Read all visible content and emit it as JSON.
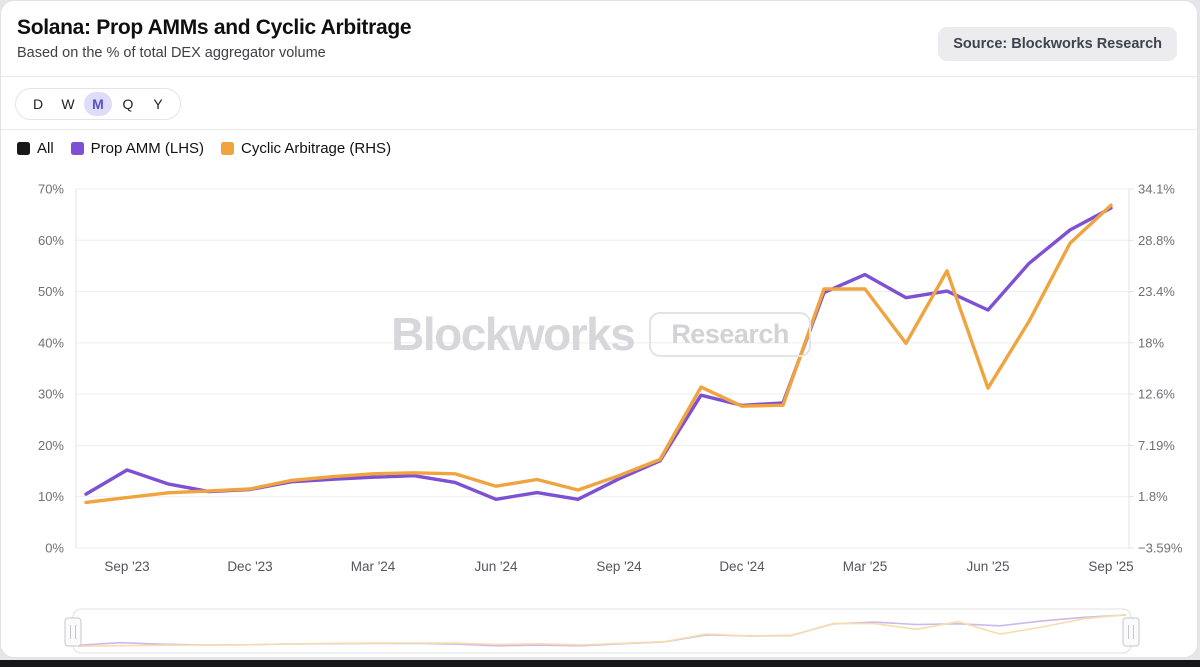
{
  "header": {
    "title": "Solana: Prop AMMs and Cyclic Arbitrage",
    "subtitle": "Based on the % of total DEX aggregator volume",
    "source_badge": "Source: Blockworks Research"
  },
  "period_selector": {
    "options": [
      "D",
      "W",
      "M",
      "Q",
      "Y"
    ],
    "selected": "M"
  },
  "legend": [
    {
      "label": "All",
      "color": "#18181b"
    },
    {
      "label": "Prop AMM (LHS)",
      "color": "#7d50d4"
    },
    {
      "label": "Cyclic Arbitrage (RHS)",
      "color": "#efa440"
    }
  ],
  "watermark": {
    "brand": "Blockworks",
    "suffix": "Research"
  },
  "chart_data": {
    "type": "line",
    "title": "Solana: Prop AMMs and Cyclic Arbitrage",
    "subtitle": "Based on the % of total DEX aggregator volume",
    "x": [
      "Aug '23",
      "Sep '23",
      "Oct '23",
      "Nov '23",
      "Dec '23",
      "Jan '24",
      "Feb '24",
      "Mar '24",
      "Apr '24",
      "May '24",
      "Jun '24",
      "Jul '24",
      "Aug '24",
      "Sep '24",
      "Oct '24",
      "Nov '24",
      "Dec '24",
      "Jan '25",
      "Feb '25",
      "Mar '25",
      "Apr '25",
      "May '25",
      "Jun '25",
      "Jul '25",
      "Aug '25",
      "Sep '25"
    ],
    "x_tick_labels": [
      "Sep '23",
      "Dec '23",
      "Mar '24",
      "Jun '24",
      "Sep '24",
      "Dec '24",
      "Mar '25",
      "Jun '25",
      "Sep '25"
    ],
    "x_tick_indices": [
      1,
      4,
      7,
      10,
      13,
      16,
      19,
      22,
      25
    ],
    "series": [
      {
        "name": "Prop AMM (LHS)",
        "axis": "left",
        "color": "#7d50d4",
        "values": [
          10.5,
          15.2,
          12.5,
          11.0,
          11.4,
          12.9,
          13.4,
          13.8,
          14.1,
          12.8,
          9.5,
          10.8,
          9.5,
          13.5,
          17.0,
          29.8,
          27.8,
          28.3,
          49.8,
          53.3,
          48.8,
          50.1,
          46.4,
          55.5,
          62.0,
          66.3
        ]
      },
      {
        "name": "Cyclic Arbitrage (RHS)",
        "axis": "right",
        "color": "#efa440",
        "values": [
          1.2,
          1.7,
          2.2,
          2.4,
          2.6,
          3.5,
          3.9,
          4.2,
          4.3,
          4.2,
          2.9,
          3.6,
          2.5,
          4.0,
          5.7,
          13.3,
          11.3,
          11.4,
          23.6,
          23.6,
          17.9,
          25.5,
          13.2,
          20.2,
          28.4,
          32.4
        ]
      }
    ],
    "left_axis": {
      "ticks": [
        "0%",
        "10%",
        "20%",
        "30%",
        "40%",
        "50%",
        "60%",
        "70%"
      ],
      "min": 0,
      "max": 70
    },
    "right_axis": {
      "ticks": [
        "−3.59%",
        "1.8%",
        "7.19%",
        "12.6%",
        "18%",
        "23.4%",
        "28.8%",
        "34.1%"
      ],
      "min": -3.59,
      "max": 34.1
    },
    "grid": true,
    "legend_position": "top-left"
  },
  "navigator": {
    "series_colors": {
      "prop_amm": "#ccb9ec",
      "cyclic_arb": "#f7ddad"
    }
  },
  "colors": {
    "grid": "#ededf0",
    "axis_line": "#e3e3e7",
    "axis_label": "#6f6f78",
    "x_label": "#55555e"
  }
}
